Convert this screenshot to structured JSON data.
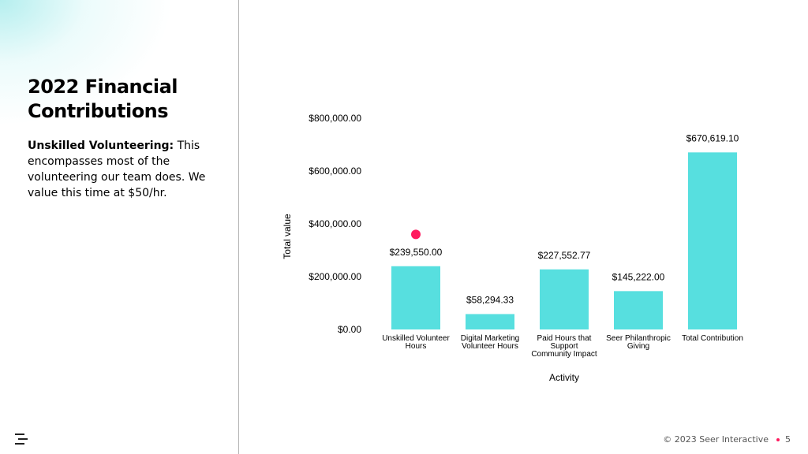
{
  "slide": {
    "title": "2022 Financial Contributions",
    "body_bold": "Unskilled Volunteering:",
    "body_text": " This encompasses most of the volunteering our team does. We value this time at $50/hr."
  },
  "footer": {
    "copyright": "© 2023 Seer Interactive",
    "page_number": "5",
    "accent_color": "#ff1a5e"
  },
  "chart_data": {
    "type": "bar",
    "categories": [
      [
        "Unskilled Volunteer",
        "Hours"
      ],
      [
        "Digital Marketing",
        "Volunteer Hours"
      ],
      [
        "Paid Hours that",
        "Support",
        "Community Impact"
      ],
      [
        "Seer Philanthropic",
        "Giving"
      ],
      [
        "Total Contribution"
      ]
    ],
    "values": [
      239550.0,
      58294.33,
      227552.77,
      145222.0,
      670619.1
    ],
    "data_labels": [
      "$239,550.00",
      "$58,294.33",
      "$227,552.77",
      "$145,222.00",
      "$670,619.10"
    ],
    "xlabel": "Activity",
    "ylabel": "Total value",
    "ylim": [
      0,
      800000
    ],
    "yticks": [
      0,
      200000,
      400000,
      600000,
      800000
    ],
    "ytick_labels": [
      "$0.00",
      "$200,000.00",
      "$400,000.00",
      "$600,000.00",
      "$800,000.00"
    ],
    "grid": false,
    "bar_color": "#57dfdf",
    "marker": {
      "category_index": 0,
      "value": 360000,
      "color": "#ff1a5e"
    }
  }
}
